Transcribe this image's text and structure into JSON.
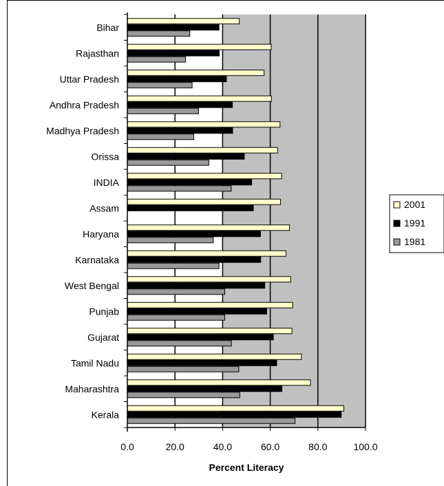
{
  "chart_data": {
    "type": "bar",
    "orientation": "horizontal",
    "categories": [
      "Bihar",
      "Rajasthan",
      "Uttar Pradesh",
      "Andhra Pradesh",
      "Madhya Pradesh",
      "Orissa",
      "INDIA",
      "Assam",
      "Haryana",
      "Karnataka",
      "West Bengal",
      "Punjab",
      "Gujarat",
      "Tamil Nadu",
      "Maharashtra",
      "Kerala"
    ],
    "series": [
      {
        "name": "2001",
        "color": "#ffffcc",
        "values": [
          47.0,
          60.4,
          57.4,
          60.5,
          64.1,
          63.1,
          64.8,
          64.3,
          68.1,
          66.6,
          68.6,
          69.4,
          69.1,
          73.1,
          76.9,
          90.9
        ]
      },
      {
        "name": "1991",
        "color": "#000000",
        "values": [
          38.5,
          38.6,
          41.6,
          44.1,
          44.2,
          49.1,
          52.2,
          52.9,
          55.9,
          56.0,
          57.7,
          58.5,
          61.3,
          62.7,
          64.9,
          89.8
        ]
      },
      {
        "name": "1981",
        "color": "#999999",
        "values": [
          26.2,
          24.4,
          27.2,
          29.9,
          27.9,
          34.2,
          43.6,
          null,
          36.1,
          38.5,
          40.9,
          40.9,
          43.7,
          46.8,
          47.2,
          70.4
        ]
      }
    ],
    "xlabel": "Percent Literacy",
    "ylabel": "",
    "xlim": [
      0,
      100
    ],
    "xticks": [
      "0.0",
      "20.0",
      "40.0",
      "60.0",
      "80.0",
      "100.0"
    ],
    "grid": "vertical",
    "legend_position": "right",
    "plot_bands": [
      {
        "from": 0,
        "to": 40,
        "color": "#ffffff"
      },
      {
        "from": 40,
        "to": 100,
        "color": "#c0c0c0"
      }
    ]
  }
}
